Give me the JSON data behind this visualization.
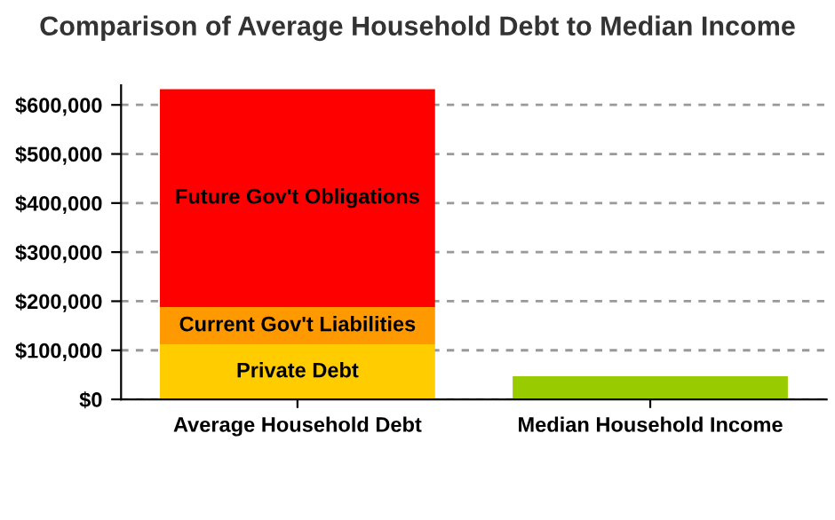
{
  "chart_data": {
    "type": "bar",
    "title": "Comparison of Average Household Debt to Median Income",
    "categories": [
      "Average Household Debt",
      "Median Household Income"
    ],
    "stacked": true,
    "series": [
      {
        "name": "Private Debt",
        "color": "#ffcc00",
        "values": [
          112000,
          null
        ]
      },
      {
        "name": "Current Gov't Liabilities",
        "color": "#ff9900",
        "values": [
          76000,
          null
        ]
      },
      {
        "name": "Future Gov't Obligations",
        "color": "#ff0000",
        "values": [
          444000,
          null
        ]
      },
      {
        "color": "#99cc00",
        "values": [
          null,
          47000
        ]
      }
    ],
    "ylim": [
      0,
      640000
    ],
    "yticks": [
      {
        "value": 0,
        "label": "$0"
      },
      {
        "value": 100000,
        "label": "$100,000"
      },
      {
        "value": 200000,
        "label": "$200,000"
      },
      {
        "value": 300000,
        "label": "$300,000"
      },
      {
        "value": 400000,
        "label": "$400,000"
      },
      {
        "value": 500000,
        "label": "$500,000"
      },
      {
        "value": 600000,
        "label": "$600,000"
      }
    ],
    "grid": "y",
    "legend": false
  }
}
